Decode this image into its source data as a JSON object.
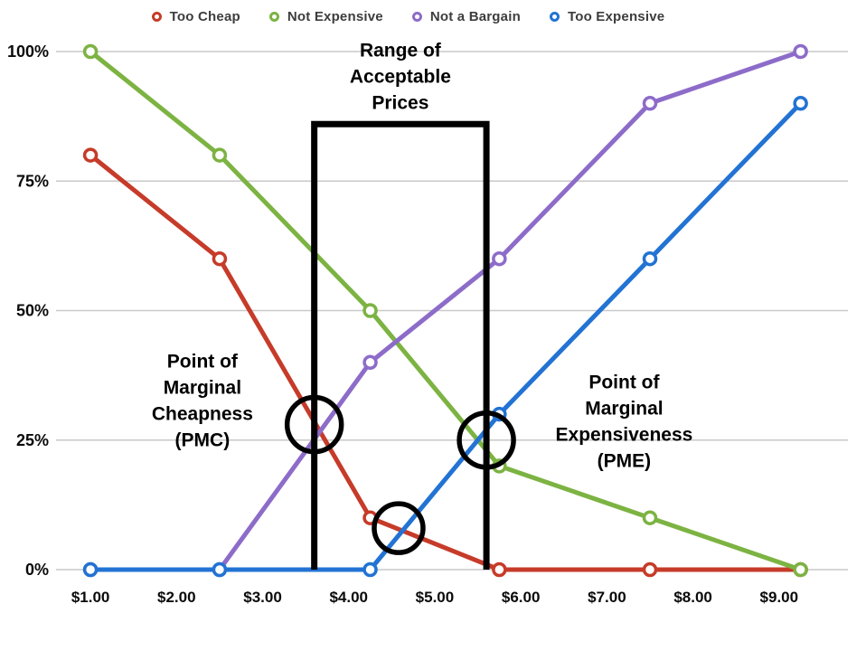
{
  "page": {
    "background": "#ffffff"
  },
  "chart_data": {
    "type": "line",
    "title": "",
    "legend_position": "top",
    "grid": "horizontal",
    "xlim": [
      0.6,
      9.8
    ],
    "ylim": [
      0,
      100
    ],
    "x": [
      1.0,
      2.5,
      4.25,
      5.75,
      7.5,
      9.25
    ],
    "x_ticks": [
      {
        "value": 1,
        "label": "$1.00"
      },
      {
        "value": 2,
        "label": "$2.00"
      },
      {
        "value": 3,
        "label": "$3.00"
      },
      {
        "value": 4,
        "label": "$4.00"
      },
      {
        "value": 5,
        "label": "$5.00"
      },
      {
        "value": 6,
        "label": "$6.00"
      },
      {
        "value": 7,
        "label": "$7.00"
      },
      {
        "value": 8,
        "label": "$8.00"
      },
      {
        "value": 9,
        "label": "$9.00"
      }
    ],
    "y_ticks": [
      {
        "value": 0,
        "label": "0%"
      },
      {
        "value": 25,
        "label": "25%"
      },
      {
        "value": 50,
        "label": "50%"
      },
      {
        "value": 75,
        "label": "75%"
      },
      {
        "value": 100,
        "label": "100%"
      }
    ],
    "series": [
      {
        "id": "too-cheap",
        "name": "Too Cheap",
        "color": "#c63b29",
        "values": [
          80,
          60,
          10,
          0,
          0,
          0
        ]
      },
      {
        "id": "not-expensive",
        "name": "Not Expensive",
        "color": "#7cb342",
        "values": [
          100,
          80,
          50,
          20,
          10,
          0
        ]
      },
      {
        "id": "not-a-bargain",
        "name": "Not a Bargain",
        "color": "#8d6cc9",
        "values": [
          0,
          0,
          40,
          60,
          90,
          100
        ]
      },
      {
        "id": "too-expensive",
        "name": "Too Expensive",
        "color": "#2273d3",
        "values": [
          0,
          0,
          0,
          30,
          60,
          90
        ]
      }
    ],
    "styles": {
      "grid_color": "#c9c9c9",
      "annotation_color": "#000000",
      "marker_fill": "#ffffff"
    },
    "annotations": {
      "bracket": {
        "x1": 3.6,
        "x2": 5.6,
        "top_pct": 86,
        "color": "#000000"
      },
      "circles": [
        {
          "name": "pmc-highlight-circle",
          "x": 3.6,
          "y": 28,
          "r": 30
        },
        {
          "name": "pme-highlight-circle",
          "x": 5.6,
          "y": 25,
          "r": 30
        },
        {
          "name": "optimal-price-highlight-circle",
          "x": 4.58,
          "y": 8,
          "r": 27
        }
      ],
      "labels": [
        {
          "name": "range-of-acceptable-prices-label",
          "x": 4.6,
          "y": 99,
          "lines": [
            "Range of",
            "Acceptable",
            "Prices"
          ]
        },
        {
          "name": "pmc-label",
          "x": 2.3,
          "y": 39,
          "lines": [
            "Point of",
            "Marginal",
            "Cheapness",
            "(PMC)"
          ]
        },
        {
          "name": "pme-label",
          "x": 7.2,
          "y": 35,
          "lines": [
            "Point of",
            "Marginal",
            "Expensiveness",
            "(PME)"
          ]
        }
      ]
    }
  }
}
